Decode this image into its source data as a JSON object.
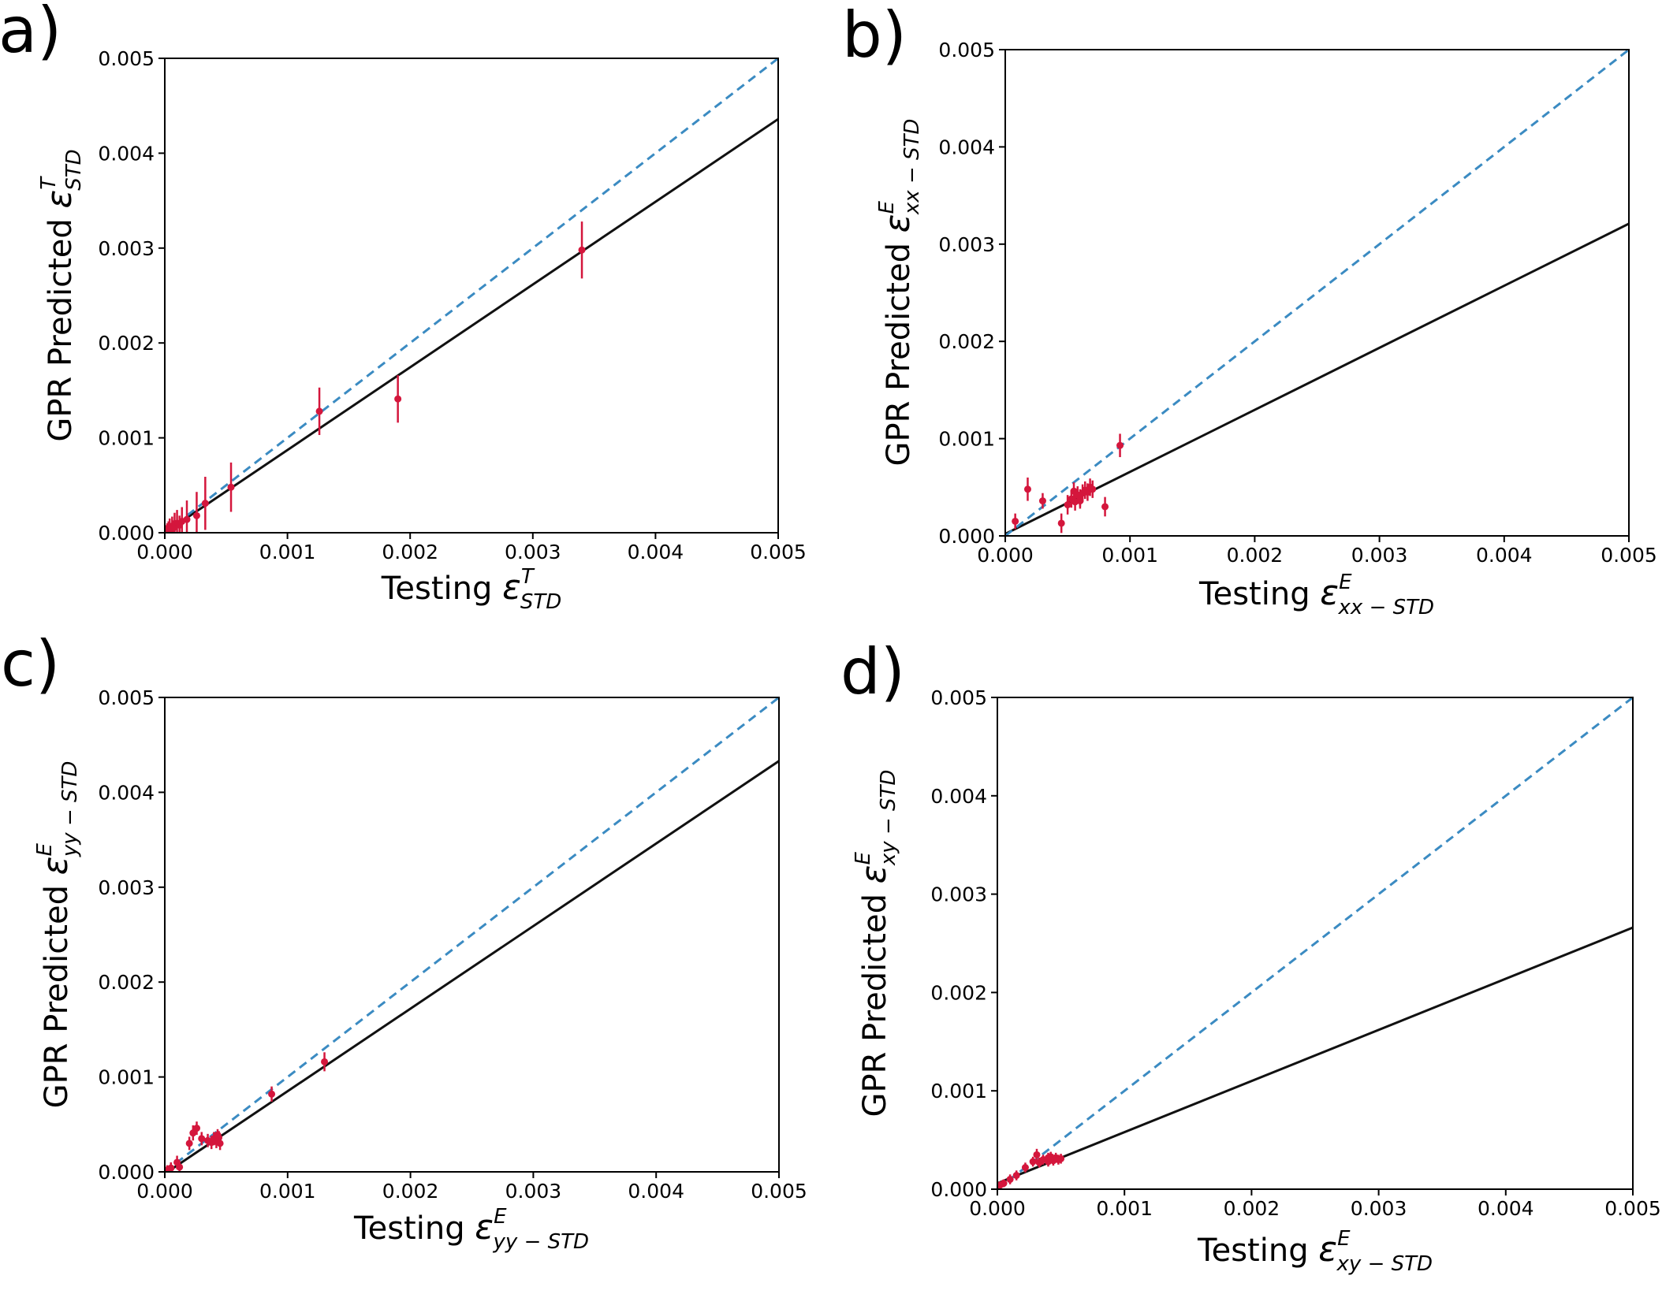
{
  "colors": {
    "identity_line": "#3b8bc2",
    "fit_line": "#111111",
    "points": "#d4163c",
    "axes": "#000000"
  },
  "chart_data": [
    {
      "type": "scatter",
      "panel_label": "a)",
      "xlabel": {
        "prefix": "Testing ",
        "symbol": "ε",
        "sup": "T",
        "sub": "STD"
      },
      "ylabel": {
        "prefix": "GPR Predicted ",
        "symbol": "ε",
        "sup": "T",
        "sub": "STD"
      },
      "xlim": [
        0,
        0.005
      ],
      "ylim": [
        0,
        0.005
      ],
      "xticks": [
        "0.000",
        "0.001",
        "0.002",
        "0.003",
        "0.004",
        "0.005"
      ],
      "yticks": [
        "0.000",
        "0.001",
        "0.002",
        "0.003",
        "0.004",
        "0.005"
      ],
      "identity_line": {
        "style": "dashed",
        "from": [
          0,
          0
        ],
        "to": [
          0.005,
          0.005
        ]
      },
      "fit_line": {
        "from": [
          0,
          0
        ],
        "to": [
          0.005,
          0.00436
        ]
      },
      "points": [
        {
          "x": 0.0034,
          "y": 0.00298,
          "err": 0.0003
        },
        {
          "x": 0.0019,
          "y": 0.00141,
          "err": 0.00025
        },
        {
          "x": 0.00126,
          "y": 0.00128,
          "err": 0.00025
        },
        {
          "x": 0.00054,
          "y": 0.00048,
          "err": 0.00026
        },
        {
          "x": 0.00033,
          "y": 0.00031,
          "err": 0.00028
        },
        {
          "x": 0.00026,
          "y": 0.00018,
          "err": 0.00025
        },
        {
          "x": 0.00018,
          "y": 0.00014,
          "err": 0.0002
        },
        {
          "x": 0.00014,
          "y": 0.00012,
          "err": 0.00015
        },
        {
          "x": 0.0001,
          "y": 0.0001,
          "err": 0.00014
        },
        {
          "x": 8e-05,
          "y": 9e-05,
          "err": 0.00012
        },
        {
          "x": 6e-05,
          "y": 7e-05,
          "err": 0.0001
        },
        {
          "x": 4e-05,
          "y": 5e-05,
          "err": 0.0001
        },
        {
          "x": 3e-05,
          "y": 4e-05,
          "err": 8e-05
        },
        {
          "x": 2e-05,
          "y": 3e-05,
          "err": 7e-05
        },
        {
          "x": 1e-05,
          "y": 2e-05,
          "err": 6e-05
        },
        {
          "x": 5e-05,
          "y": 2e-05,
          "err": 5e-05
        },
        {
          "x": 7e-05,
          "y": 5e-05,
          "err": 8e-05
        },
        {
          "x": 0.00012,
          "y": 8e-05,
          "err": 0.0001
        }
      ]
    },
    {
      "type": "scatter",
      "panel_label": "b)",
      "xlabel": {
        "prefix": "Testing ",
        "symbol": "ε",
        "sup": "E",
        "sub": "xx − STD"
      },
      "ylabel": {
        "prefix": "GPR Predicted ",
        "symbol": "ε",
        "sup": "E",
        "sub": "xx − STD"
      },
      "xlim": [
        0,
        0.005
      ],
      "ylim": [
        0,
        0.005
      ],
      "xticks": [
        "0.000",
        "0.001",
        "0.002",
        "0.003",
        "0.004",
        "0.005"
      ],
      "yticks": [
        "0.000",
        "0.001",
        "0.002",
        "0.003",
        "0.004",
        "0.005"
      ],
      "identity_line": {
        "style": "dashed",
        "from": [
          0,
          0
        ],
        "to": [
          0.005,
          0.005
        ]
      },
      "fit_line": {
        "from": [
          0,
          2e-05
        ],
        "to": [
          0.005,
          0.00321
        ]
      },
      "points": [
        {
          "x": 0.00092,
          "y": 0.00093,
          "err": 0.00012
        },
        {
          "x": 0.0008,
          "y": 0.0003,
          "err": 0.0001
        },
        {
          "x": 0.00018,
          "y": 0.00048,
          "err": 0.00012
        },
        {
          "x": 8e-05,
          "y": 0.00015,
          "err": 8e-05
        },
        {
          "x": 0.0003,
          "y": 0.00036,
          "err": 8e-05
        },
        {
          "x": 0.00045,
          "y": 0.00013,
          "err": 0.0001
        },
        {
          "x": 0.0005,
          "y": 0.00032,
          "err": 0.0001
        },
        {
          "x": 0.00053,
          "y": 0.00038,
          "err": 9e-05
        },
        {
          "x": 0.00056,
          "y": 0.00035,
          "err": 9e-05
        },
        {
          "x": 0.00058,
          "y": 0.00042,
          "err": 9e-05
        },
        {
          "x": 0.0006,
          "y": 0.00039,
          "err": 9e-05
        },
        {
          "x": 0.00062,
          "y": 0.00044,
          "err": 9e-05
        },
        {
          "x": 0.00064,
          "y": 0.00047,
          "err": 9e-05
        },
        {
          "x": 0.00066,
          "y": 0.00045,
          "err": 9e-05
        },
        {
          "x": 0.00068,
          "y": 0.0005,
          "err": 9e-05
        },
        {
          "x": 0.0007,
          "y": 0.00048,
          "err": 9e-05
        },
        {
          "x": 0.00055,
          "y": 0.00046,
          "err": 9e-05
        },
        {
          "x": 0.0006,
          "y": 0.00036,
          "err": 8e-05
        }
      ]
    },
    {
      "type": "scatter",
      "panel_label": "c)",
      "xlabel": {
        "prefix": "Testing ",
        "symbol": "ε",
        "sup": "E",
        "sub": "yy − STD"
      },
      "ylabel": {
        "prefix": "GPR Predicted ",
        "symbol": "ε",
        "sup": "E",
        "sub": "yy − STD"
      },
      "xlim": [
        0,
        0.005
      ],
      "ylim": [
        0,
        0.005
      ],
      "xticks": [
        "0.000",
        "0.001",
        "0.002",
        "0.003",
        "0.004",
        "0.005"
      ],
      "yticks": [
        "0.000",
        "0.001",
        "0.002",
        "0.003",
        "0.004",
        "0.005"
      ],
      "identity_line": {
        "style": "dashed",
        "from": [
          0,
          0
        ],
        "to": [
          0.005,
          0.005
        ]
      },
      "fit_line": {
        "from": [
          0,
          -2e-05
        ],
        "to": [
          0.005,
          0.00433
        ]
      },
      "points": [
        {
          "x": 0.0013,
          "y": 0.00116,
          "err": 0.0001
        },
        {
          "x": 0.00087,
          "y": 0.00082,
          "err": 8e-05
        },
        {
          "x": 0.00023,
          "y": 0.00041,
          "err": 8e-05
        },
        {
          "x": 0.00026,
          "y": 0.00046,
          "err": 7e-05
        },
        {
          "x": 0.0002,
          "y": 0.0003,
          "err": 7e-05
        },
        {
          "x": 0.0003,
          "y": 0.00035,
          "err": 7e-05
        },
        {
          "x": 0.00035,
          "y": 0.00033,
          "err": 7e-05
        },
        {
          "x": 0.00038,
          "y": 0.00031,
          "err": 7e-05
        },
        {
          "x": 0.0004,
          "y": 0.00035,
          "err": 7e-05
        },
        {
          "x": 0.00042,
          "y": 0.00032,
          "err": 7e-05
        },
        {
          "x": 0.00044,
          "y": 0.00036,
          "err": 7e-05
        },
        {
          "x": 0.00045,
          "y": 0.0003,
          "err": 7e-05
        },
        {
          "x": 0.0001,
          "y": 0.0001,
          "err": 7e-05
        },
        {
          "x": 0.00012,
          "y": 5e-05,
          "err": 6e-05
        },
        {
          "x": 5e-05,
          "y": 4e-05,
          "err": 6e-05
        },
        {
          "x": 2e-05,
          "y": 2e-05,
          "err": 5e-05
        },
        {
          "x": 0.00043,
          "y": 0.00039,
          "err": 6e-05
        }
      ]
    },
    {
      "type": "scatter",
      "panel_label": "d)",
      "xlabel": {
        "prefix": "Testing ",
        "symbol": "ε",
        "sup": "E",
        "sub": "xy − STD"
      },
      "ylabel": {
        "prefix": "GPR Predicted ",
        "symbol": "ε",
        "sup": "E",
        "sub": "xy − STD"
      },
      "xlim": [
        0,
        0.005
      ],
      "ylim": [
        0,
        0.005
      ],
      "xticks": [
        "0.000",
        "0.001",
        "0.002",
        "0.003",
        "0.004",
        "0.005"
      ],
      "yticks": [
        "0.000",
        "0.001",
        "0.002",
        "0.003",
        "0.004",
        "0.005"
      ],
      "identity_line": {
        "style": "dashed",
        "from": [
          0,
          0
        ],
        "to": [
          0.005,
          0.005
        ]
      },
      "fit_line": {
        "from": [
          0,
          6e-05
        ],
        "to": [
          0.005,
          0.00266
        ]
      },
      "points": [
        {
          "x": 2e-05,
          "y": 4e-05,
          "err": 4e-05
        },
        {
          "x": 5e-05,
          "y": 6e-05,
          "err": 4e-05
        },
        {
          "x": 0.0001,
          "y": 0.0001,
          "err": 5e-05
        },
        {
          "x": 0.00015,
          "y": 0.00014,
          "err": 5e-05
        },
        {
          "x": 0.00022,
          "y": 0.00022,
          "err": 5e-05
        },
        {
          "x": 0.00028,
          "y": 0.00028,
          "err": 5e-05
        },
        {
          "x": 0.00031,
          "y": 0.00035,
          "err": 6e-05
        },
        {
          "x": 0.00033,
          "y": 0.00027,
          "err": 5e-05
        },
        {
          "x": 0.00036,
          "y": 0.0003,
          "err": 5e-05
        },
        {
          "x": 0.0004,
          "y": 0.00028,
          "err": 5e-05
        },
        {
          "x": 0.00042,
          "y": 0.00033,
          "err": 5e-05
        },
        {
          "x": 0.00044,
          "y": 0.00029,
          "err": 5e-05
        },
        {
          "x": 0.00046,
          "y": 0.00032,
          "err": 5e-05
        },
        {
          "x": 0.00048,
          "y": 0.0003,
          "err": 5e-05
        },
        {
          "x": 0.0005,
          "y": 0.00031,
          "err": 5e-05
        },
        {
          "x": 0.0004,
          "y": 0.00032,
          "err": 5e-05
        }
      ]
    }
  ]
}
